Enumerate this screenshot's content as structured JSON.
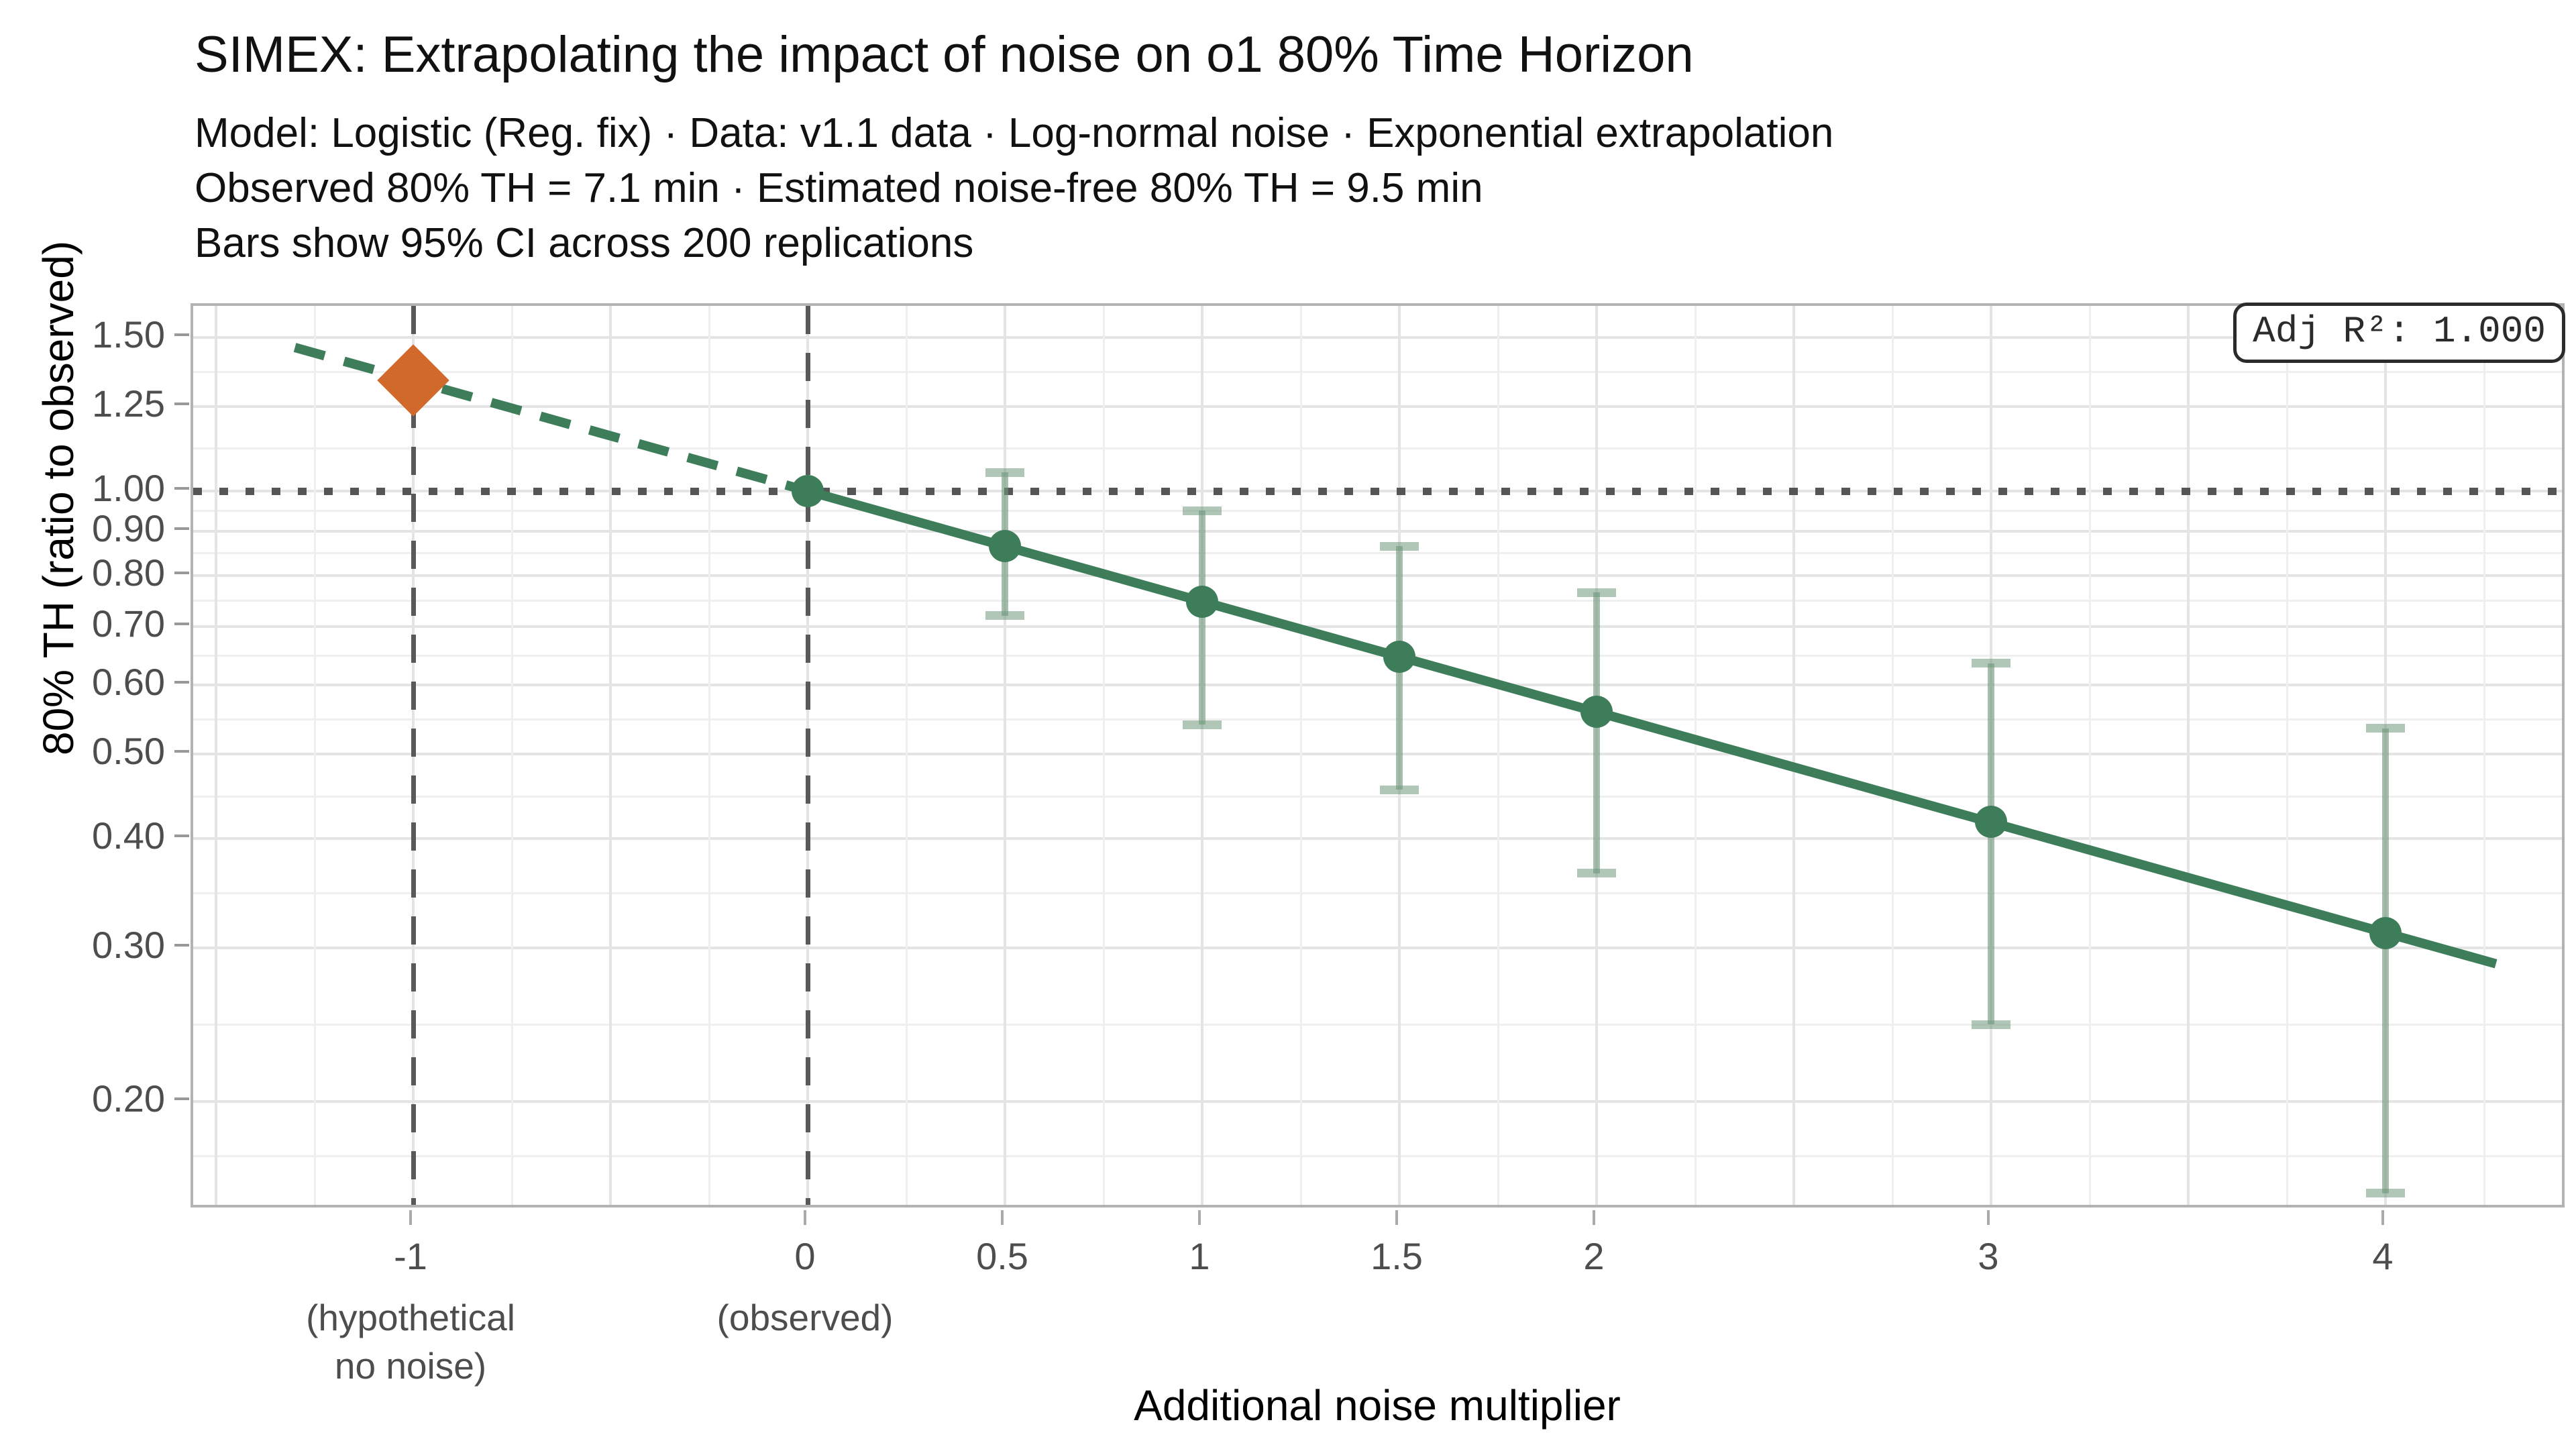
{
  "header": {
    "title": "SIMEX: Extrapolating the impact of noise on o1 80% Time Horizon",
    "subtitle_lines": [
      "Model: Logistic (Reg. fix) · Data: v1.1 data · Log-normal noise · Exponential extrapolation",
      "Observed 80% TH = 7.1 min · Estimated noise-free 80% TH = 9.5 min",
      "Bars show 95% CI across 200 replications"
    ]
  },
  "annotation_box": {
    "label": "Adj R²: 1.000"
  },
  "colors": {
    "fit_line": "#3e7d5a",
    "point": "#3e7d5a",
    "error_bar": "#9bb8a3",
    "extrapolated_marker": "#d2692c",
    "reference_dashed": "#595959",
    "reference_dotted": "#555555",
    "grid_major": "#e4e4e4",
    "grid_minor": "#efefef",
    "panel_border": "#b3b3b3",
    "tick_label": "#4d4d4d"
  },
  "chart_data": {
    "type": "scatter",
    "title": "SIMEX: Extrapolating the impact of noise on o1 80% Time Horizon",
    "xlabel": "Additional noise multiplier",
    "ylabel": "80% TH (ratio to observed)",
    "x_scale": "linear",
    "y_scale": "log10",
    "xlim": [
      -1.56,
      4.46
    ],
    "ylim": [
      0.15,
      1.63
    ],
    "grid": true,
    "legend_position": "none",
    "x_ticks": [
      {
        "value": -1,
        "label": "-1",
        "sublabel": "(hypothetical\nno noise)"
      },
      {
        "value": 0,
        "label": "0",
        "sublabel": "(observed)"
      },
      {
        "value": 0.5,
        "label": "0.5",
        "sublabel": ""
      },
      {
        "value": 1,
        "label": "1",
        "sublabel": ""
      },
      {
        "value": 1.5,
        "label": "1.5",
        "sublabel": ""
      },
      {
        "value": 2,
        "label": "2",
        "sublabel": ""
      },
      {
        "value": 3,
        "label": "3",
        "sublabel": ""
      },
      {
        "value": 4,
        "label": "4",
        "sublabel": ""
      }
    ],
    "y_ticks": [
      {
        "value": 1.5,
        "label": "1.50"
      },
      {
        "value": 1.25,
        "label": "1.25"
      },
      {
        "value": 1.0,
        "label": "1.00"
      },
      {
        "value": 0.9,
        "label": "0.90"
      },
      {
        "value": 0.8,
        "label": "0.80"
      },
      {
        "value": 0.7,
        "label": "0.70"
      },
      {
        "value": 0.6,
        "label": "0.60"
      },
      {
        "value": 0.5,
        "label": "0.50"
      },
      {
        "value": 0.4,
        "label": "0.40"
      },
      {
        "value": 0.3,
        "label": "0.30"
      },
      {
        "value": 0.2,
        "label": "0.20"
      }
    ],
    "y_minor_gridlines": [
      1.3693,
      1.118,
      0.9487,
      0.8485,
      0.7483,
      0.6481,
      0.5477,
      0.4472,
      0.3464,
      0.2449,
      0.1732
    ],
    "x_major_gridlines": [
      -1.5,
      -1,
      -0.5,
      0,
      0.5,
      1,
      1.5,
      2,
      2.5,
      3,
      3.5,
      4
    ],
    "x_minor_gridlines": [
      -1.25,
      -0.75,
      -0.25,
      0.25,
      0.75,
      1.25,
      1.75,
      2.25,
      2.75,
      3.25,
      3.75,
      4.25
    ],
    "reference_lines": {
      "vertical_dashed_x": [
        -1,
        0
      ],
      "horizontal_dotted_y": [
        1.0
      ]
    },
    "series": [
      {
        "name": "simex-mean-ratios",
        "marker": "circle",
        "points": [
          {
            "x": 0,
            "y": 1.0,
            "ci_lo": null,
            "ci_hi": null
          },
          {
            "x": 0.5,
            "y": 0.865,
            "ci_lo": 0.72,
            "ci_hi": 1.05
          },
          {
            "x": 1,
            "y": 0.747,
            "ci_lo": 0.54,
            "ci_hi": 0.95
          },
          {
            "x": 1.5,
            "y": 0.646,
            "ci_lo": 0.455,
            "ci_hi": 0.865
          },
          {
            "x": 2,
            "y": 0.559,
            "ci_lo": 0.365,
            "ci_hi": 0.765
          },
          {
            "x": 3,
            "y": 0.418,
            "ci_lo": 0.245,
            "ci_hi": 0.635
          },
          {
            "x": 4,
            "y": 0.312,
            "ci_lo": 0.157,
            "ci_hi": 0.535
          }
        ]
      },
      {
        "name": "extrapolated-noise-free-estimate",
        "marker": "diamond",
        "points": [
          {
            "x": -1,
            "y": 1.338,
            "ci_lo": null,
            "ci_hi": null
          }
        ]
      },
      {
        "name": "exponential-fit-line",
        "marker": "line",
        "fit": {
          "base_ratio_at_minus1": 1.338,
          "dashed_from_x": -1.3,
          "dashed_to_x": 0,
          "solid_from_x": 0,
          "solid_to_x": 4.28
        }
      }
    ]
  }
}
